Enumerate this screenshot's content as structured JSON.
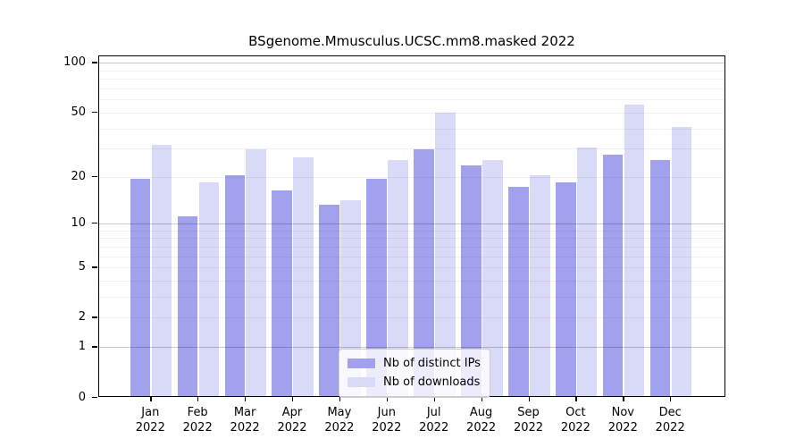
{
  "title": "BSgenome.Mmusculus.UCSC.mm8.masked 2022",
  "chart_data": {
    "type": "bar",
    "title": "BSgenome.Mmusculus.UCSC.mm8.masked 2022",
    "xlabel": "",
    "ylabel": "",
    "categories": [
      "Jan",
      "Feb",
      "Mar",
      "Apr",
      "May",
      "Jun",
      "Jul",
      "Aug",
      "Sep",
      "Oct",
      "Nov",
      "Dec"
    ],
    "year_label": "2022",
    "series": [
      {
        "name": "Nb of distinct IPs",
        "color": "#a1a1ee",
        "values": [
          19,
          11,
          20,
          16,
          13,
          19,
          29,
          23,
          17,
          18,
          27,
          25
        ]
      },
      {
        "name": "Nb of downloads",
        "color": "#d9d9f8",
        "values": [
          31,
          18,
          29,
          26,
          14,
          25,
          49,
          25,
          20,
          30,
          55,
          40
        ]
      }
    ],
    "y_axis": {
      "scale": "log10(1+y)",
      "tick_labels": [
        0,
        1,
        2,
        5,
        10,
        20,
        50,
        100
      ],
      "major_gridlines": [
        1,
        10,
        100
      ],
      "minor_gridlines": [
        2,
        3,
        4,
        5,
        6,
        7,
        8,
        9,
        20,
        30,
        40,
        50,
        60,
        70,
        80,
        90
      ],
      "ylim": [
        0,
        110
      ],
      "grid": true
    },
    "legend": {
      "position": "lower-center-inside",
      "entries": [
        "Nb of distinct IPs",
        "Nb of downloads"
      ]
    }
  }
}
